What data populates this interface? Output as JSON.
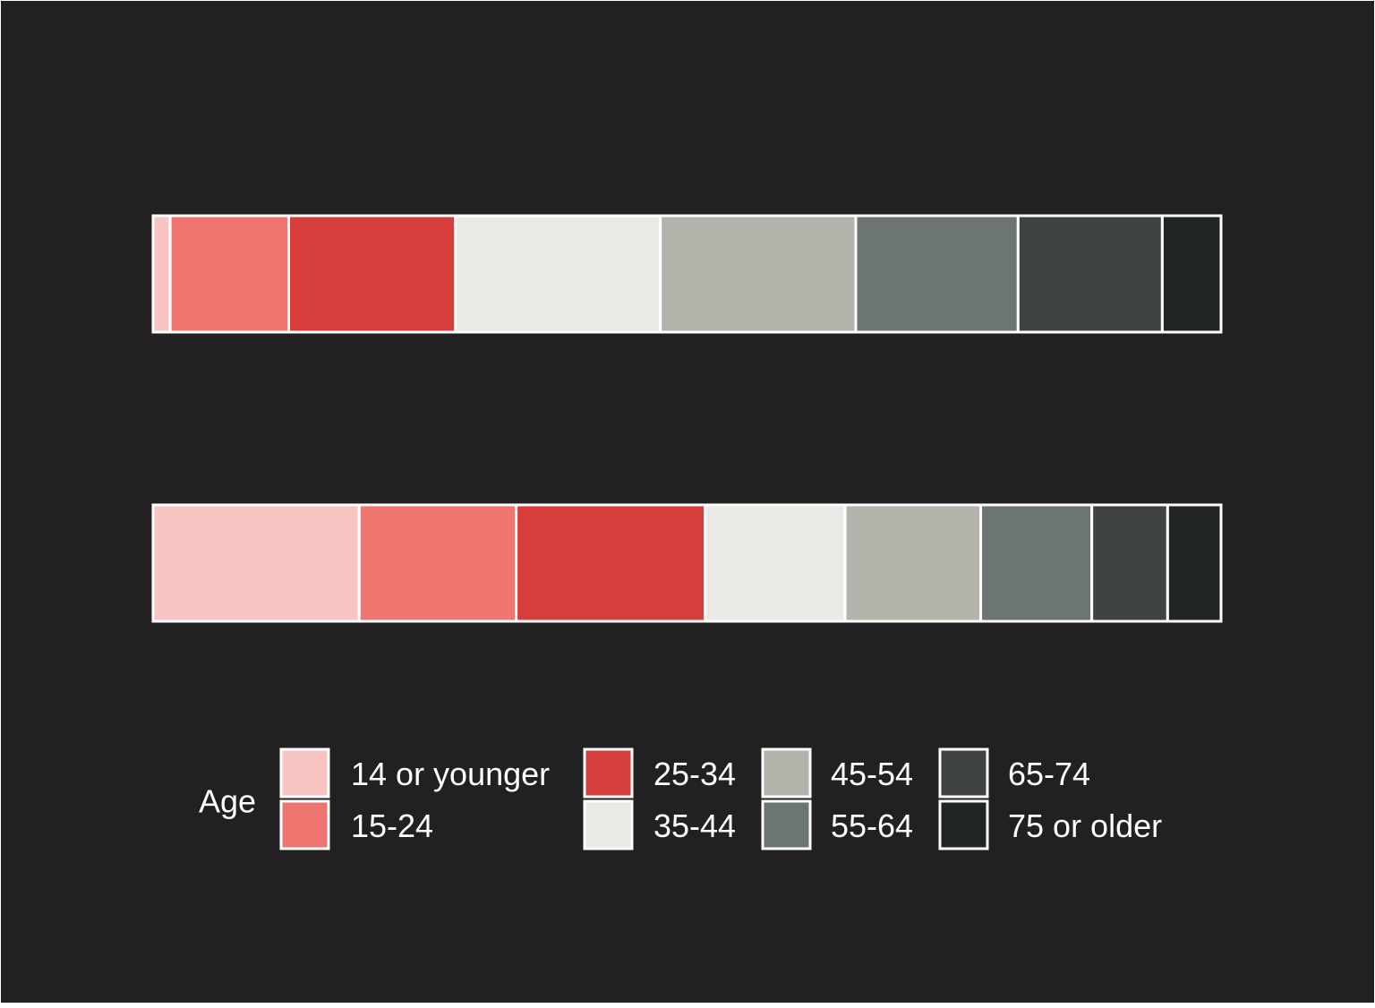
{
  "chart_data": {
    "type": "bar",
    "orientation": "horizontal",
    "stacked": true,
    "normalized": true,
    "categories": [
      "",
      ""
    ],
    "series": [
      {
        "name": "14 or younger",
        "values": [
          1.6,
          19.3
        ]
      },
      {
        "name": "15-24",
        "values": [
          11.1,
          14.7
        ]
      },
      {
        "name": "25-34",
        "values": [
          15.6,
          17.7
        ]
      },
      {
        "name": "35-44",
        "values": [
          19.2,
          13.1
        ]
      },
      {
        "name": "45-54",
        "values": [
          18.3,
          12.7
        ]
      },
      {
        "name": "55-64",
        "values": [
          15.2,
          10.4
        ]
      },
      {
        "name": "65-74",
        "values": [
          13.5,
          7.1
        ]
      },
      {
        "name": "75 or older",
        "values": [
          5.5,
          5.0
        ]
      }
    ],
    "xlim": [
      0,
      100
    ],
    "axes_visible": false,
    "grid": false,
    "legend": {
      "title": "Age",
      "position": "bottom",
      "layout": "columns of two"
    }
  },
  "colors": {
    "background": "#222021",
    "segment_border": "#ffffff",
    "legend_text": "#ffffff",
    "series": [
      "#f8c5c3",
      "#ef7571",
      "#d73d3a",
      "#eae9e5",
      "#b3b2ab",
      "#6d7570",
      "#404441",
      "#212623"
    ]
  }
}
